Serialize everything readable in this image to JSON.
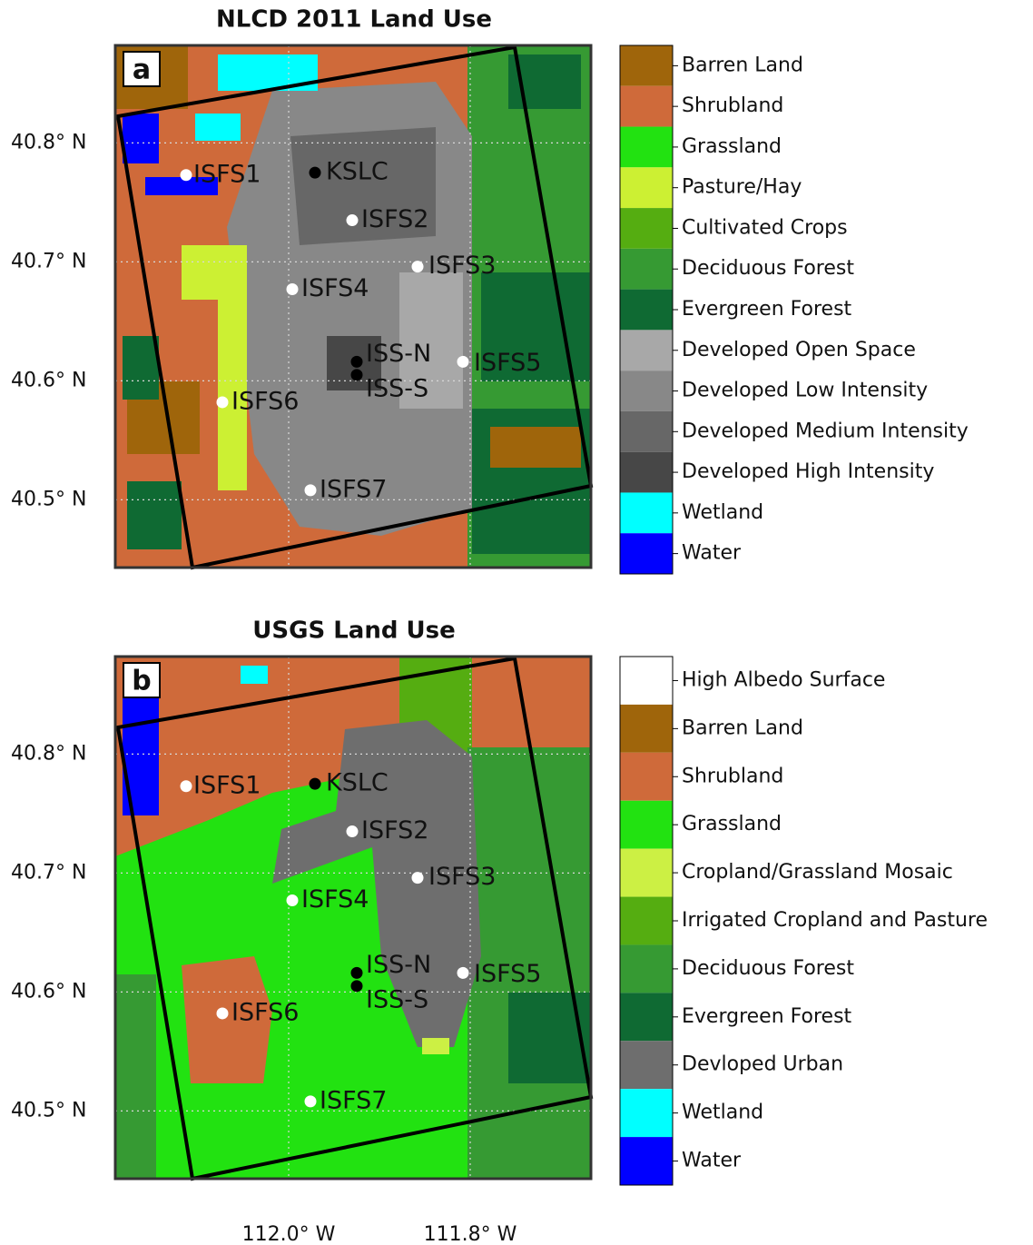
{
  "lat_ticks": [
    {
      "value": 40.8,
      "label": "40.8° N"
    },
    {
      "value": 40.7,
      "label": "40.7° N"
    },
    {
      "value": 40.6,
      "label": "40.6° N"
    },
    {
      "value": 40.5,
      "label": "40.5° N"
    }
  ],
  "lon_ticks": [
    {
      "value": -112.0,
      "label": "112.0° W"
    },
    {
      "value": -111.8,
      "label": "111.8° W"
    }
  ],
  "latlim": [
    40.443,
    40.882
  ],
  "lonlim": [
    -112.191,
    -111.667
  ],
  "stations": [
    {
      "name": "ISFS1",
      "lat": 40.773,
      "lon": -112.113,
      "color": "#ffffff"
    },
    {
      "name": "KSLC",
      "lat": 40.775,
      "lon": -111.971,
      "color": "#000000"
    },
    {
      "name": "ISFS2",
      "lat": 40.735,
      "lon": -111.93,
      "color": "#ffffff"
    },
    {
      "name": "ISFS3",
      "lat": 40.696,
      "lon": -111.858,
      "color": "#ffffff"
    },
    {
      "name": "ISFS4",
      "lat": 40.677,
      "lon": -111.996,
      "color": "#ffffff"
    },
    {
      "name": "ISS-N",
      "lat": 40.616,
      "lon": -111.925,
      "color": "#000000"
    },
    {
      "name": "ISS-S",
      "lat": 40.605,
      "lon": -111.925,
      "color": "#000000"
    },
    {
      "name": "ISFS5",
      "lat": 40.616,
      "lon": -111.808,
      "color": "#ffffff"
    },
    {
      "name": "ISFS6",
      "lat": 40.582,
      "lon": -112.073,
      "color": "#ffffff"
    },
    {
      "name": "ISFS7",
      "lat": 40.508,
      "lon": -111.976,
      "color": "#ffffff"
    }
  ],
  "panels": [
    {
      "title": "NLCD 2011 Land Use",
      "label": "a",
      "legend": [
        {
          "name": "Barren Land",
          "color": "#9f650b"
        },
        {
          "name": "Shrubland",
          "color": "#cf6a3a"
        },
        {
          "name": "Grassland",
          "color": "#22e211"
        },
        {
          "name": "Pasture/Hay",
          "color": "#ccf033"
        },
        {
          "name": "Cultivated Crops",
          "color": "#55ad11"
        },
        {
          "name": "Deciduous Forest",
          "color": "#369a33"
        },
        {
          "name": "Evergreen Forest",
          "color": "#0f6a33"
        },
        {
          "name": "Developed Open Space",
          "color": "#a8a8a8"
        },
        {
          "name": "Developed Low Intensity",
          "color": "#888888"
        },
        {
          "name": "Developed Medium Intensity",
          "color": "#676767"
        },
        {
          "name": "Developed High Intensity",
          "color": "#474747"
        },
        {
          "name": "Wetland",
          "color": "#00ffff"
        },
        {
          "name": "Water",
          "color": "#0000ff"
        }
      ]
    },
    {
      "title": "USGS Land Use",
      "label": "b",
      "legend": [
        {
          "name": "High Albedo Surface",
          "color": "#ffffff"
        },
        {
          "name": "Barren Land",
          "color": "#9f650b"
        },
        {
          "name": "Shrubland",
          "color": "#cf6a3a"
        },
        {
          "name": "Grassland",
          "color": "#22e211"
        },
        {
          "name": "Cropland/Grassland Mosaic",
          "color": "#ccf044"
        },
        {
          "name": "Irrigated Cropland and Pasture",
          "color": "#55ad11"
        },
        {
          "name": "Deciduous Forest",
          "color": "#369a33"
        },
        {
          "name": "Evergreen Forest",
          "color": "#0f6a33"
        },
        {
          "name": "Devloped Urban",
          "color": "#6e6e6e"
        },
        {
          "name": "Wetland",
          "color": "#00ffff"
        },
        {
          "name": "Water",
          "color": "#0000ff"
        }
      ]
    }
  ]
}
